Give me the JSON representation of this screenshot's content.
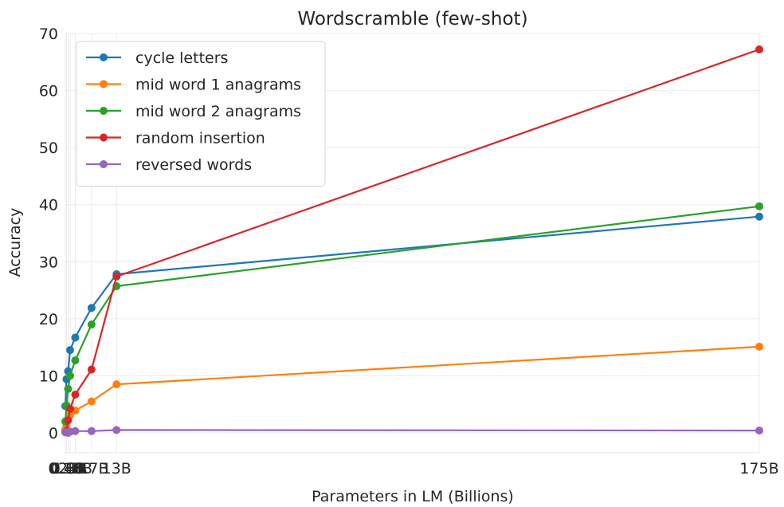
{
  "chart_data": {
    "type": "line",
    "title": "Wordscramble (few-shot)",
    "xlabel": "Parameters in LM (Billions)",
    "ylabel": "Accuracy",
    "categories": [
      "0.1B",
      "0.4B",
      "0.8B",
      "1.3B",
      "2.6B",
      "6.7B",
      "13B",
      "175B"
    ],
    "x_values": [
      0.1,
      0.4,
      0.8,
      1.3,
      2.6,
      6.7,
      13,
      175
    ],
    "ylim": [
      -3.5,
      70
    ],
    "yticks": [
      0,
      10,
      20,
      30,
      40,
      50,
      60,
      70
    ],
    "grid": true,
    "legend_position": "top-left",
    "series": [
      {
        "name": "cycle letters",
        "color": "#1f77b4",
        "values": [
          4.7,
          9.4,
          10.8,
          14.5,
          16.7,
          21.9,
          27.8,
          37.9
        ]
      },
      {
        "name": "mid word 1 anagrams",
        "color": "#ff7f0e",
        "values": [
          0.6,
          1.3,
          2.3,
          3.1,
          3.9,
          5.5,
          8.5,
          15.1
        ]
      },
      {
        "name": "mid word 2 anagrams",
        "color": "#2ca02c",
        "values": [
          2.0,
          4.8,
          7.7,
          10.0,
          12.7,
          19.0,
          25.7,
          39.7
        ]
      },
      {
        "name": "random insertion",
        "color": "#d62728",
        "values": [
          0.1,
          0.3,
          2.2,
          4.2,
          6.7,
          11.1,
          27.4,
          67.2
        ]
      },
      {
        "name": "reversed words",
        "color": "#9467bd",
        "values": [
          0.1,
          0.1,
          0.0,
          0.2,
          0.3,
          0.3,
          0.5,
          0.4
        ]
      }
    ]
  }
}
